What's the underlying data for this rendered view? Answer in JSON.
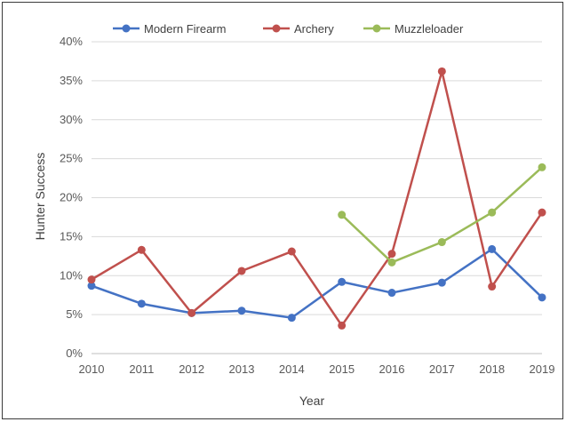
{
  "chart_data": {
    "type": "line",
    "title": "",
    "xlabel": "Year",
    "ylabel": "Hunter Success",
    "x": [
      2010,
      2011,
      2012,
      2013,
      2014,
      2015,
      2016,
      2017,
      2018,
      2019
    ],
    "x_tick_labels": [
      "2010",
      "2011",
      "2012",
      "2013",
      "2014",
      "2015",
      "2016",
      "2017",
      "2018",
      "2019"
    ],
    "ylim": [
      0,
      40
    ],
    "y_ticks": [
      0,
      5,
      10,
      15,
      20,
      25,
      30,
      35,
      40
    ],
    "y_tick_labels": [
      "0%",
      "5%",
      "10%",
      "15%",
      "20%",
      "25%",
      "30%",
      "35%",
      "40%"
    ],
    "grid": "horizontal",
    "legend_position": "top",
    "series": [
      {
        "name": "Modern Firearm",
        "color": "#4472C4",
        "values": [
          8.7,
          6.4,
          5.2,
          5.5,
          4.6,
          9.2,
          7.8,
          9.1,
          13.4,
          7.2
        ]
      },
      {
        "name": "Archery",
        "color": "#C0504D",
        "values": [
          9.5,
          13.3,
          5.2,
          10.6,
          13.1,
          3.6,
          12.8,
          36.2,
          8.6,
          18.1
        ]
      },
      {
        "name": "Muzzleloader",
        "color": "#9BBB59",
        "values": [
          null,
          null,
          null,
          null,
          null,
          17.8,
          11.7,
          14.3,
          18.1,
          23.9
        ]
      }
    ]
  }
}
